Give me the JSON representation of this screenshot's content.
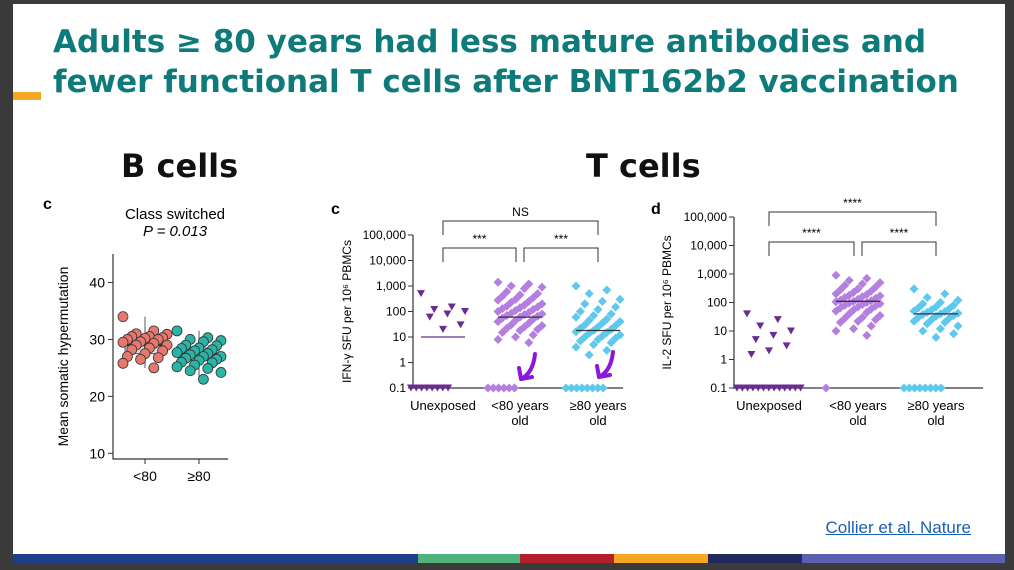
{
  "slide": {
    "title_line1": "Adults ≥ 80 years had less mature antibodies and",
    "title_line2": "fewer functional T cells after BNT162b2 vaccination",
    "bcells_heading": "B cells",
    "tcells_heading": "T cells",
    "citation": "Collier et al. Nature",
    "colors": {
      "title": "#0e7a7a",
      "accent": "#f5a623",
      "footer": [
        "#1b3f8b",
        "#1b3f8b",
        "#1b3f8b",
        "#4fb37b",
        "#b3202a",
        "#f5a623",
        "#23285c",
        "#5d5fb0"
      ]
    }
  },
  "chart_data": [
    {
      "type": "scatter",
      "panel_letter": "c",
      "title": "Class switched",
      "subtitle": "P = 0.013",
      "ylabel": "Mean somatic hypermutation",
      "categories": [
        "<80",
        "≥80"
      ],
      "ylim": [
        9,
        45
      ],
      "yticks": [
        10,
        20,
        30,
        40
      ],
      "colors": [
        "#e8786e",
        "#2bb3a6"
      ],
      "box_median": [
        29.0,
        27.5
      ],
      "box_q1": [
        27.5,
        26.3
      ],
      "box_q3": [
        30.5,
        28.5
      ],
      "whisker": [
        [
          25.0,
          34.0
        ],
        [
          23.0,
          31.5
        ]
      ],
      "points": [
        [
          34.0,
          31.5,
          31.0,
          30.9,
          30.5,
          30.5,
          30.3,
          30.2,
          30.0,
          30.0,
          29.6,
          29.5,
          29.3,
          29.0,
          29.0,
          28.5,
          28.2,
          28.0,
          27.5,
          27.0,
          26.8,
          26.5,
          25.8,
          25.0
        ],
        [
          31.5,
          30.3,
          30.0,
          29.8,
          29.6,
          29.0,
          28.9,
          28.5,
          28.4,
          28.2,
          28.0,
          27.7,
          27.5,
          27.3,
          27.0,
          27.0,
          26.7,
          26.5,
          26.3,
          26.0,
          25.9,
          25.5,
          25.2,
          24.9,
          24.5,
          24.2,
          23.0
        ]
      ]
    },
    {
      "type": "scatter",
      "panel_letter": "c",
      "ylabel": "IFN-γ SFU per 10⁶ PBMCs",
      "categories": [
        "Unexposed",
        "<80 years old",
        "≥80 years old"
      ],
      "yscale": "log",
      "ylim": [
        0.1,
        100000
      ],
      "yticks": [
        "0.1",
        "1",
        "10",
        "100",
        "1,000",
        "10,000",
        "100,000"
      ],
      "colors": [
        "#6a2c91",
        "#b57fe0",
        "#5ec8ee"
      ],
      "medians": [
        10,
        60,
        18
      ],
      "significance": [
        {
          "groups": [
            0,
            2
          ],
          "label": "NS"
        },
        {
          "groups": [
            0,
            1
          ],
          "label": "***"
        },
        {
          "groups": [
            1,
            2
          ],
          "label": "***"
        }
      ],
      "points": [
        [
          500,
          150,
          120,
          100,
          80,
          60,
          30,
          20,
          0.1,
          0.1,
          0.1,
          0.1,
          0.1,
          0.1,
          0.1,
          0.1
        ],
        [
          1400,
          1200,
          1000,
          900,
          800,
          600,
          500,
          450,
          400,
          350,
          300,
          280,
          250,
          230,
          200,
          180,
          160,
          150,
          140,
          130,
          120,
          110,
          100,
          90,
          85,
          80,
          75,
          70,
          65,
          60,
          55,
          50,
          45,
          40,
          35,
          30,
          28,
          25,
          22,
          20,
          18,
          15,
          12,
          10,
          8,
          6,
          0.1,
          0.1,
          0.1,
          0.1,
          0.1,
          0.1
        ],
        [
          1000,
          700,
          500,
          300,
          250,
          200,
          150,
          120,
          100,
          80,
          70,
          60,
          50,
          45,
          40,
          35,
          30,
          28,
          25,
          22,
          20,
          18,
          16,
          15,
          14,
          12,
          11,
          10,
          9,
          8,
          7,
          6,
          5,
          4,
          3,
          2,
          0.1,
          0.1,
          0.1,
          0.1,
          0.1,
          0.1,
          0.1,
          0.1
        ]
      ]
    },
    {
      "type": "scatter",
      "panel_letter": "d",
      "ylabel": "IL-2 SFU per 10⁶ PBMCs",
      "categories": [
        "Unexposed",
        "<80 years old",
        "≥80 years old"
      ],
      "yscale": "log",
      "ylim": [
        0.1,
        100000
      ],
      "yticks": [
        "0.1",
        "1",
        "10",
        "100",
        "1,000",
        "10,000",
        "100,000"
      ],
      "colors": [
        "#6a2c91",
        "#b57fe0",
        "#5ec8ee"
      ],
      "medians": [
        0.1,
        110,
        40
      ],
      "significance": [
        {
          "groups": [
            0,
            2
          ],
          "label": "****"
        },
        {
          "groups": [
            0,
            1
          ],
          "label": "****"
        },
        {
          "groups": [
            1,
            2
          ],
          "label": "****"
        }
      ],
      "points": [
        [
          40,
          25,
          15,
          10,
          7,
          5,
          3,
          2,
          1.5,
          0.1,
          0.1,
          0.1,
          0.1,
          0.1,
          0.1,
          0.1,
          0.1,
          0.1,
          0.1,
          0.1,
          0.1,
          0.1,
          0.1,
          0.1
        ],
        [
          900,
          700,
          600,
          500,
          450,
          400,
          350,
          300,
          280,
          250,
          230,
          200,
          190,
          180,
          170,
          160,
          150,
          140,
          130,
          120,
          115,
          110,
          105,
          100,
          95,
          90,
          85,
          80,
          75,
          70,
          65,
          60,
          55,
          50,
          45,
          40,
          35,
          30,
          28,
          25,
          22,
          20,
          15,
          12,
          10,
          7,
          0.1
        ],
        [
          300,
          200,
          150,
          120,
          100,
          90,
          80,
          70,
          65,
          60,
          55,
          50,
          48,
          45,
          42,
          40,
          38,
          35,
          33,
          30,
          28,
          25,
          22,
          20,
          18,
          15,
          12,
          10,
          8,
          6,
          0.1,
          0.1,
          0.1,
          0.1,
          0.1,
          0.1,
          0.1,
          0.1
        ]
      ]
    }
  ]
}
